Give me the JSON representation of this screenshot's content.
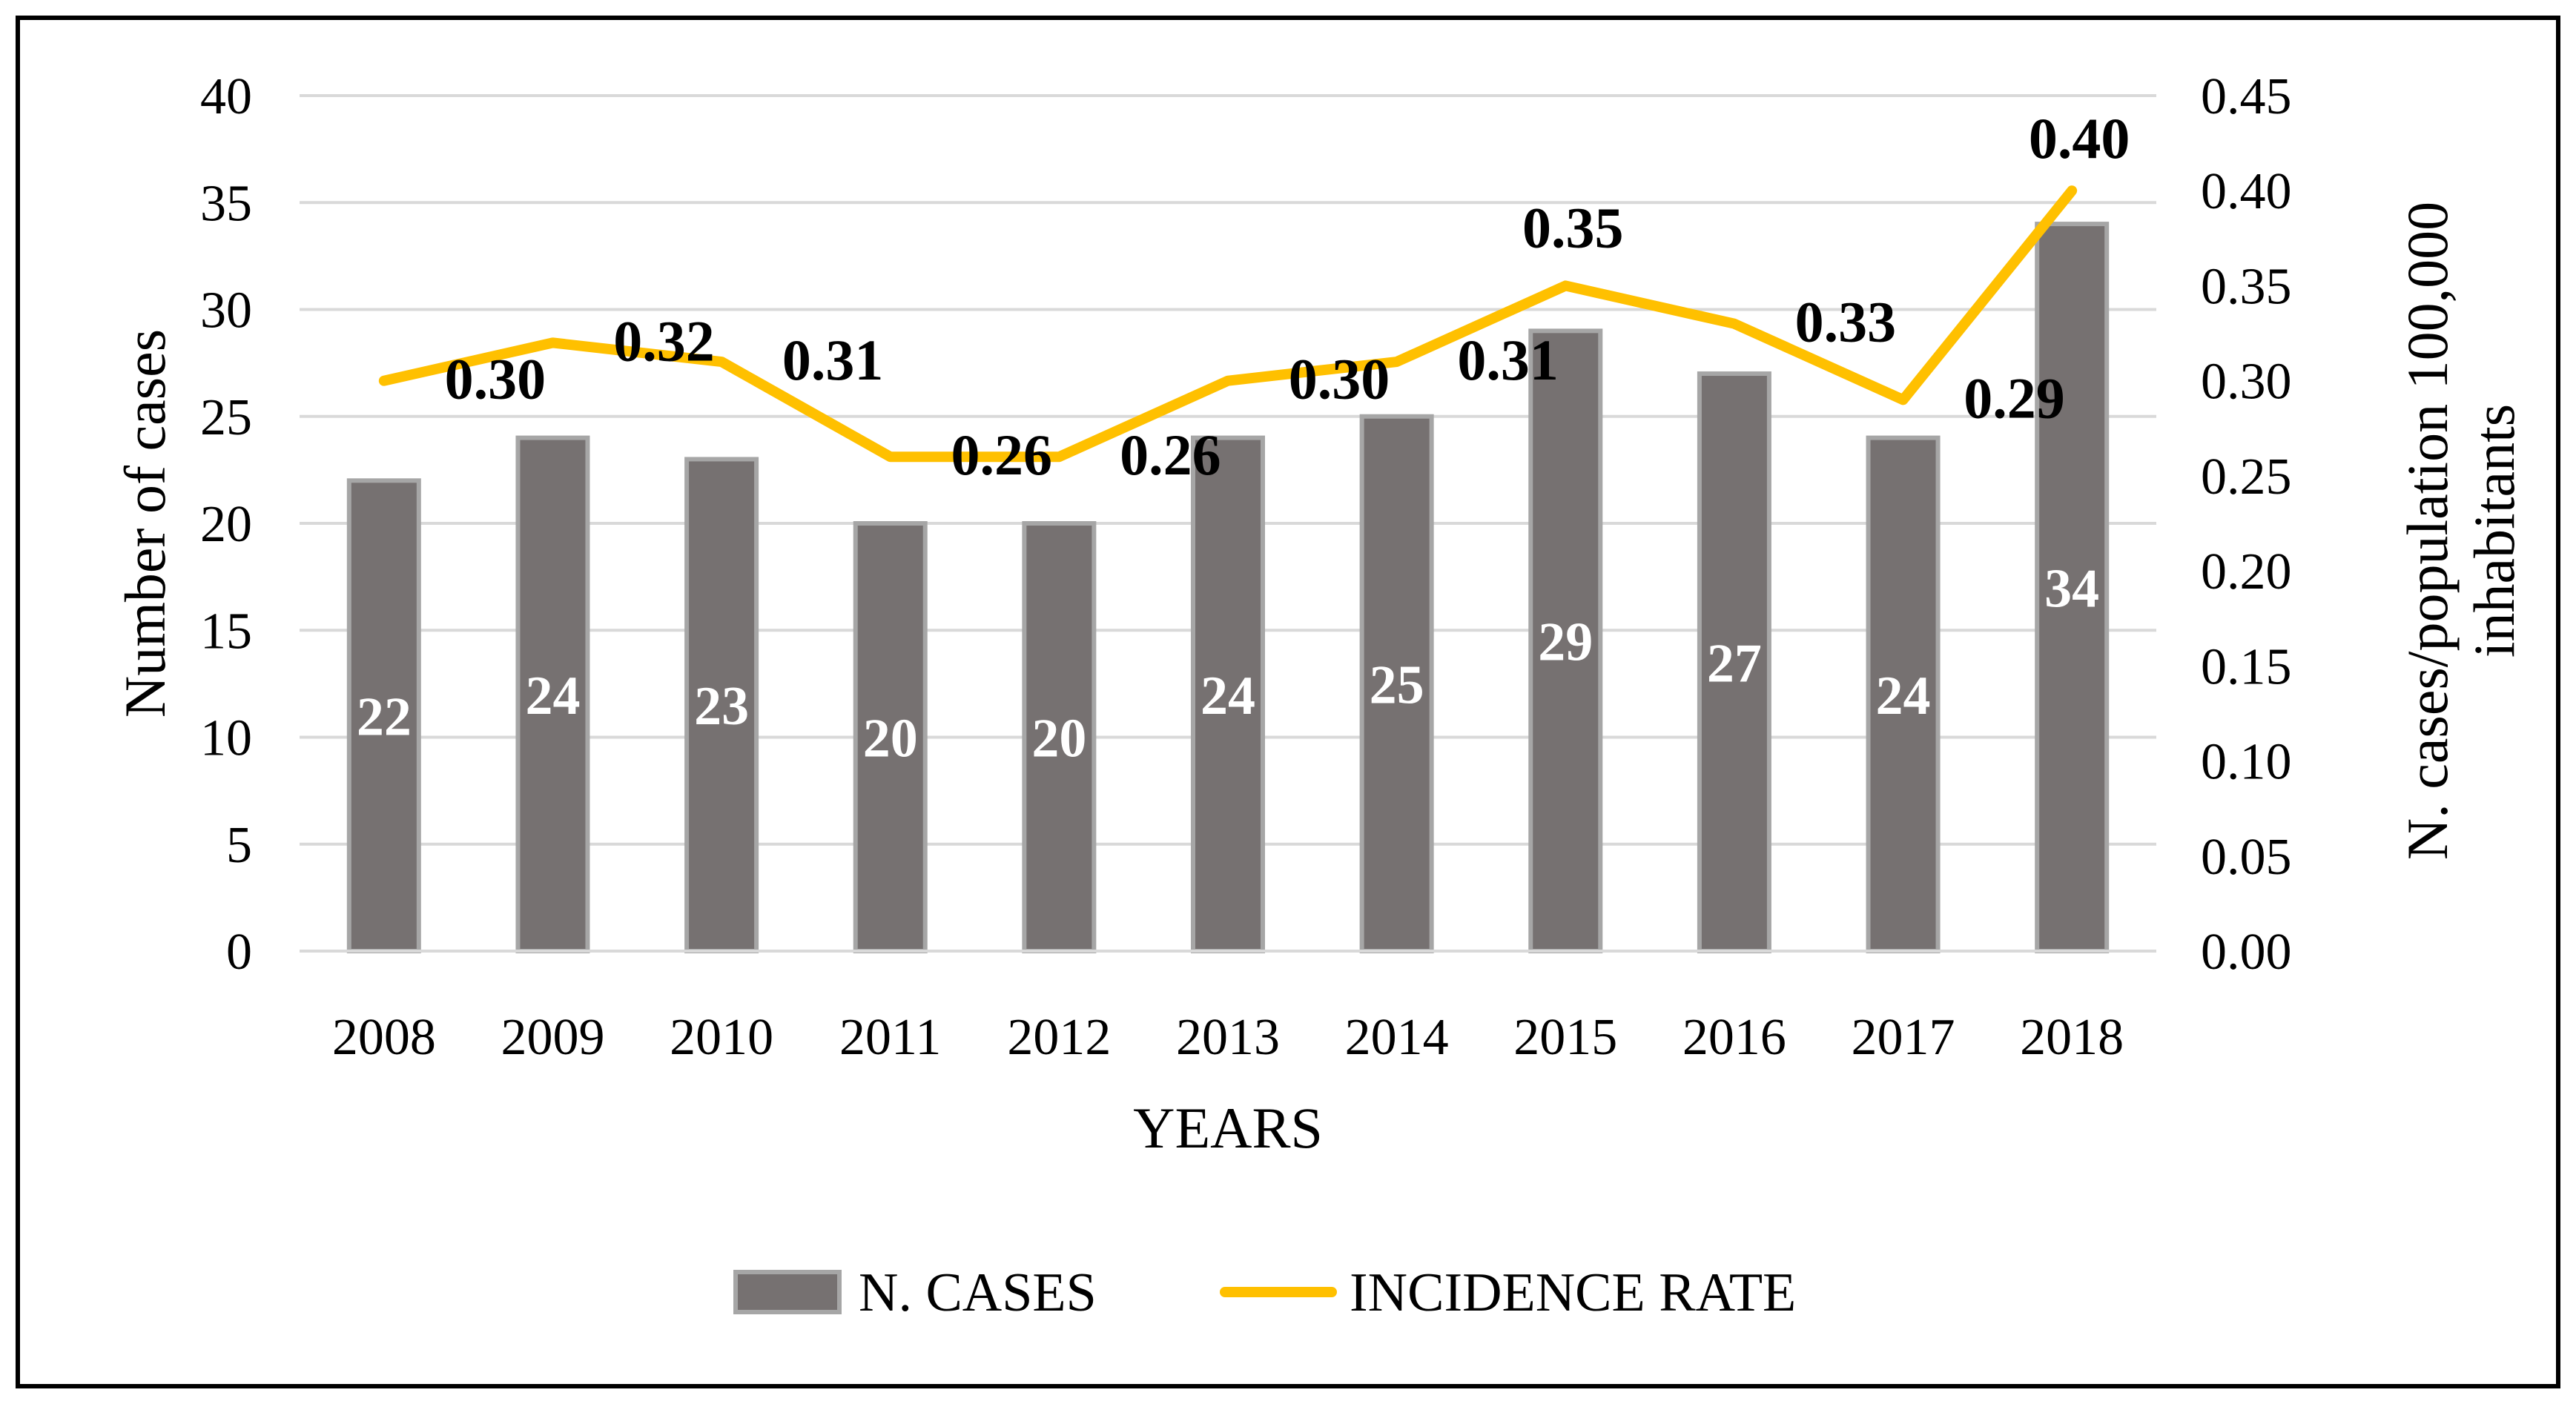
{
  "chart_data": {
    "type": "bar",
    "title": "",
    "categories": [
      "2008",
      "2009",
      "2010",
      "2011",
      "2012",
      "2013",
      "2014",
      "2015",
      "2016",
      "2017",
      "2018"
    ],
    "xlabel": "YEARS",
    "ylabel": "Number of cases",
    "y2label_line1": "N. cases/population 100,000",
    "y2label_line2": "inhabitants",
    "ylim": [
      0,
      40
    ],
    "y2lim": [
      0,
      0.45
    ],
    "yticks": [
      "0",
      "5",
      "10",
      "15",
      "20",
      "25",
      "30",
      "35",
      "40"
    ],
    "y2ticks": [
      "0.00",
      "0.05",
      "0.10",
      "0.15",
      "0.20",
      "0.25",
      "0.30",
      "0.35",
      "0.40",
      "0.45"
    ],
    "grid": true,
    "legend_position": "bottom",
    "series": [
      {
        "name": "N. CASES",
        "type": "bar",
        "axis": "left",
        "color": "#767171",
        "edge_color": "#A6A6A6",
        "values": [
          22,
          24,
          23,
          20,
          20,
          24,
          25,
          29,
          27,
          24,
          34
        ],
        "labels": [
          "22",
          "24",
          "23",
          "20",
          "20",
          "24",
          "25",
          "29",
          "27",
          "24",
          "34"
        ]
      },
      {
        "name": "INCIDENCE RATE",
        "type": "line",
        "axis": "right",
        "color": "#FFC000",
        "values": [
          0.3,
          0.32,
          0.31,
          0.26,
          0.26,
          0.3,
          0.31,
          0.35,
          0.33,
          0.29,
          0.4
        ],
        "labels": [
          "0.30",
          "0.32",
          "0.31",
          "0.26",
          "0.26",
          "0.30",
          "0.31",
          "0.35",
          "0.33",
          "0.29",
          "0.40"
        ]
      }
    ]
  }
}
